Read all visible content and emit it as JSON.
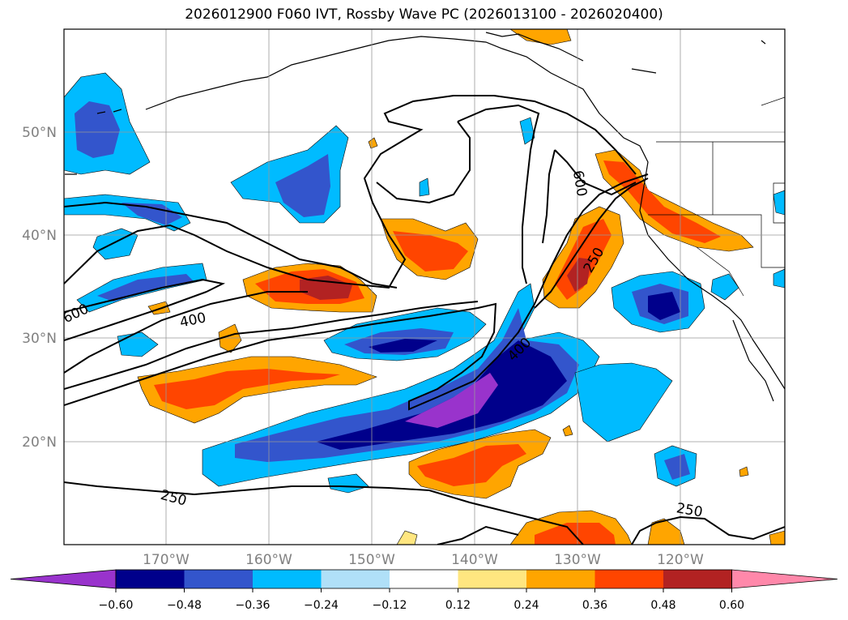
{
  "title": "2026012900 F060 IVT, Rossby Wave PC (2026013100 - 2026020400)",
  "map": {
    "lat_labels": [
      "50°N",
      "40°N",
      "30°N",
      "20°N"
    ],
    "lon_labels": [
      "170°W",
      "160°W",
      "150°W",
      "140°W",
      "130°W",
      "120°W"
    ],
    "contour_labels": [
      {
        "text": "600",
        "region": "west-central"
      },
      {
        "text": "400",
        "region": "west-central"
      },
      {
        "text": "250",
        "region": "southwest"
      },
      {
        "text": "600",
        "region": "off-Pacific-Northwest"
      },
      {
        "text": "250",
        "region": "off-California"
      },
      {
        "text": "400",
        "region": "central"
      },
      {
        "text": "250",
        "region": "southeast"
      }
    ]
  },
  "colorbar": {
    "ticks": [
      "−0.60",
      "−0.48",
      "−0.36",
      "−0.24",
      "−0.12",
      "0.12",
      "0.24",
      "0.36",
      "0.48",
      "0.60"
    ],
    "colors": [
      "#9933cc",
      "#00008b",
      "#3355cc",
      "#00bbff",
      "#b0e0f8",
      "#ffffff",
      "#ffe680",
      "#ffa500",
      "#ff4500",
      "#b22222",
      "#ff88aa"
    ],
    "extend": "both"
  }
}
